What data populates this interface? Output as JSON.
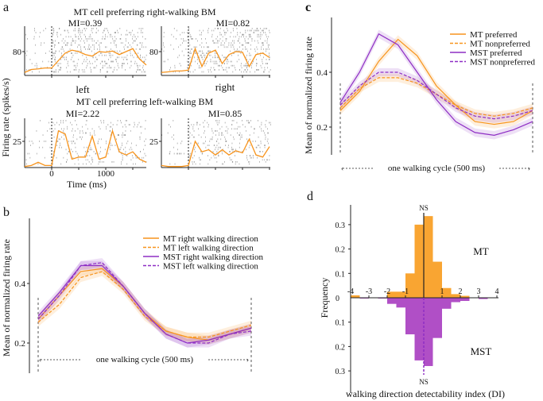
{
  "colors": {
    "orange": "#f7941d",
    "purple": "#8e2ec4",
    "mt_hist": "#f9a532",
    "mst_hist": "#b04fc6",
    "raster": "#9a9a9a"
  },
  "chart_data": [
    {
      "panel": "a",
      "type": "line",
      "xlabel": "Time (ms)",
      "ylabel": "Firing rate (spikes/s)",
      "xticks": [
        0,
        1000
      ],
      "x": [
        -500,
        -375,
        -250,
        -125,
        0,
        125,
        250,
        375,
        500,
        625,
        750,
        875,
        1000,
        1125,
        1250,
        1375,
        1500,
        1625,
        1750
      ],
      "row_titles": [
        "MT cell preferring right-walking BM",
        "MT cell preferring left-walking BM"
      ],
      "column_labels": [
        "left",
        "right"
      ],
      "subplots": [
        {
          "mi": "MI=0.39",
          "ytick": 80,
          "values": [
            10,
            20,
            22,
            25,
            25,
            50,
            75,
            85,
            80,
            70,
            65,
            80,
            78,
            82,
            70,
            80,
            90,
            55,
            35
          ]
        },
        {
          "mi": "MI=0.82",
          "ytick": 80,
          "values": [
            10,
            12,
            15,
            15,
            18,
            90,
            30,
            75,
            85,
            40,
            70,
            80,
            78,
            30,
            70,
            75,
            60,
            50,
            45
          ]
        },
        {
          "mi": "MI=2.22",
          "ytick": 25,
          "values": [
            1,
            2,
            5,
            2,
            2,
            35,
            32,
            8,
            10,
            10,
            30,
            8,
            10,
            35,
            15,
            12,
            15,
            8,
            5
          ]
        },
        {
          "mi": "MI=0.85",
          "ytick": 25,
          "values": [
            2,
            1,
            1,
            1,
            2,
            25,
            15,
            17,
            12,
            17,
            12,
            16,
            14,
            27,
            12,
            10,
            20,
            15,
            10
          ]
        }
      ]
    },
    {
      "panel": "b",
      "type": "line",
      "ylabel": "Mean of normalized firing rate",
      "yticks": [
        0.2,
        0.4
      ],
      "cycle_label": "one walking cycle (500 ms)",
      "x": [
        0,
        50,
        100,
        150,
        200,
        250,
        300,
        350,
        400,
        450,
        500
      ],
      "series": [
        {
          "name": "MT right walking direction",
          "color": "orange",
          "dashed": false,
          "values": [
            0.28,
            0.36,
            0.44,
            0.45,
            0.39,
            0.3,
            0.24,
            0.22,
            0.21,
            0.23,
            0.25
          ]
        },
        {
          "name": "MT left walking direction",
          "color": "orange",
          "dashed": true,
          "values": [
            0.27,
            0.33,
            0.42,
            0.44,
            0.38,
            0.29,
            0.24,
            0.22,
            0.22,
            0.24,
            0.26
          ]
        },
        {
          "name": "MST right walking direction",
          "color": "purple",
          "dashed": false,
          "values": [
            0.29,
            0.37,
            0.46,
            0.46,
            0.39,
            0.3,
            0.23,
            0.2,
            0.21,
            0.23,
            0.25
          ]
        },
        {
          "name": "MST left walking direction",
          "color": "purple",
          "dashed": true,
          "values": [
            0.28,
            0.36,
            0.46,
            0.47,
            0.39,
            0.3,
            0.23,
            0.2,
            0.2,
            0.23,
            0.24
          ]
        }
      ]
    },
    {
      "panel": "c",
      "type": "line",
      "ylabel": "Mean of normalized firing rate",
      "yticks": [
        0.2,
        0.4
      ],
      "cycle_label": "one walking cycle (500 ms)",
      "x": [
        0,
        50,
        100,
        150,
        200,
        250,
        300,
        350,
        400,
        450,
        500
      ],
      "series": [
        {
          "name": "MT preferred",
          "color": "orange",
          "dashed": false,
          "values": [
            0.26,
            0.33,
            0.44,
            0.52,
            0.46,
            0.35,
            0.28,
            0.22,
            0.21,
            0.22,
            0.26
          ]
        },
        {
          "name": "MT nonpreferred",
          "color": "orange",
          "dashed": true,
          "values": [
            0.27,
            0.34,
            0.38,
            0.38,
            0.36,
            0.32,
            0.28,
            0.25,
            0.24,
            0.25,
            0.27
          ]
        },
        {
          "name": "MST preferred",
          "color": "purple",
          "dashed": false,
          "values": [
            0.29,
            0.4,
            0.54,
            0.5,
            0.4,
            0.3,
            0.22,
            0.18,
            0.17,
            0.19,
            0.22
          ]
        },
        {
          "name": "MST nonpreferred",
          "color": "purple",
          "dashed": true,
          "values": [
            0.28,
            0.35,
            0.4,
            0.4,
            0.37,
            0.32,
            0.27,
            0.24,
            0.23,
            0.24,
            0.26
          ]
        }
      ]
    },
    {
      "panel": "d",
      "type": "bar",
      "xlabel": "walking direction detectability index (DI)",
      "ylabel": "Frequency",
      "xticks": [
        -4,
        -3,
        -2,
        -1,
        1,
        2,
        3,
        4
      ],
      "yticks_up": [
        0.1,
        0.2,
        0.3
      ],
      "yticks_down": [
        0.1,
        0.2,
        0.3
      ],
      "zero_label": "0",
      "bin_edges": [
        -4,
        -3.5,
        -3,
        -2.5,
        -2,
        -1.5,
        -1,
        -0.5,
        0,
        0.5,
        1,
        1.5,
        2,
        2.5,
        3,
        3.5,
        4
      ],
      "series": [
        {
          "name": "MT",
          "direction": "up",
          "values": [
            0.01,
            0,
            0,
            0,
            0.025,
            0.025,
            0.1,
            0.3,
            0.335,
            0.148,
            0.04,
            0.015,
            0.008,
            0,
            0,
            0
          ]
        },
        {
          "name": "MST",
          "direction": "down",
          "values": [
            0,
            0.003,
            0,
            0.003,
            0.025,
            0.04,
            0.15,
            0.257,
            0.28,
            0.165,
            0.045,
            0.018,
            0.013,
            0,
            0.005,
            0
          ]
        }
      ],
      "ns_label": "NS"
    }
  ],
  "panel_letters": [
    "a",
    "b",
    "c",
    "d"
  ]
}
